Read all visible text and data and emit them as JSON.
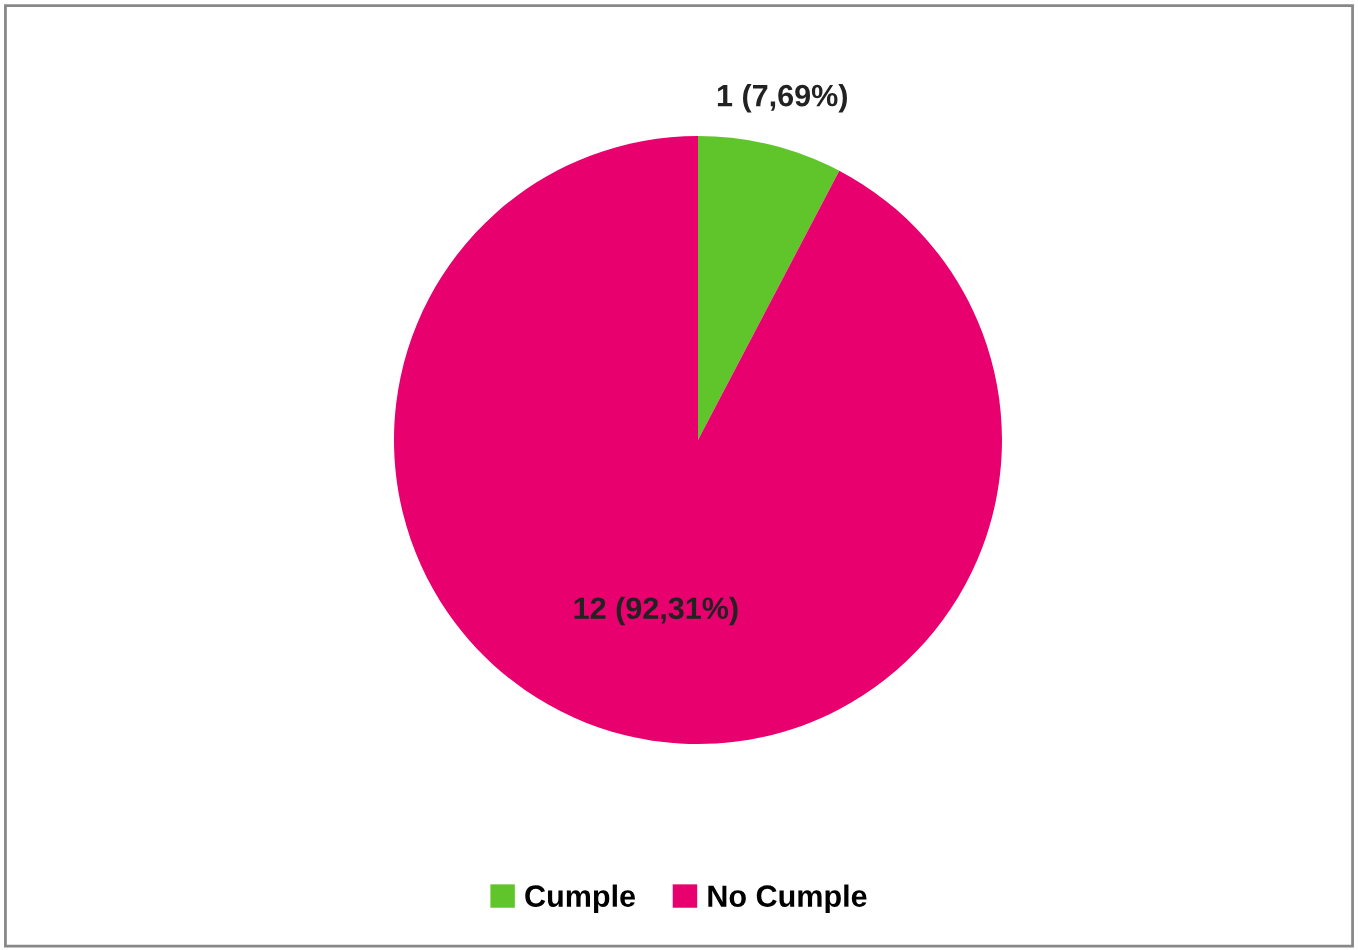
{
  "chart_data": {
    "type": "pie",
    "categories": [
      "Cumple",
      "No Cumple"
    ],
    "values": [
      1,
      12
    ],
    "colors": [
      "#5fc52a",
      "#e8006f"
    ],
    "value_labels": [
      "1 (7,69%)",
      "12 (92,31%)"
    ],
    "legend": "bottom"
  }
}
